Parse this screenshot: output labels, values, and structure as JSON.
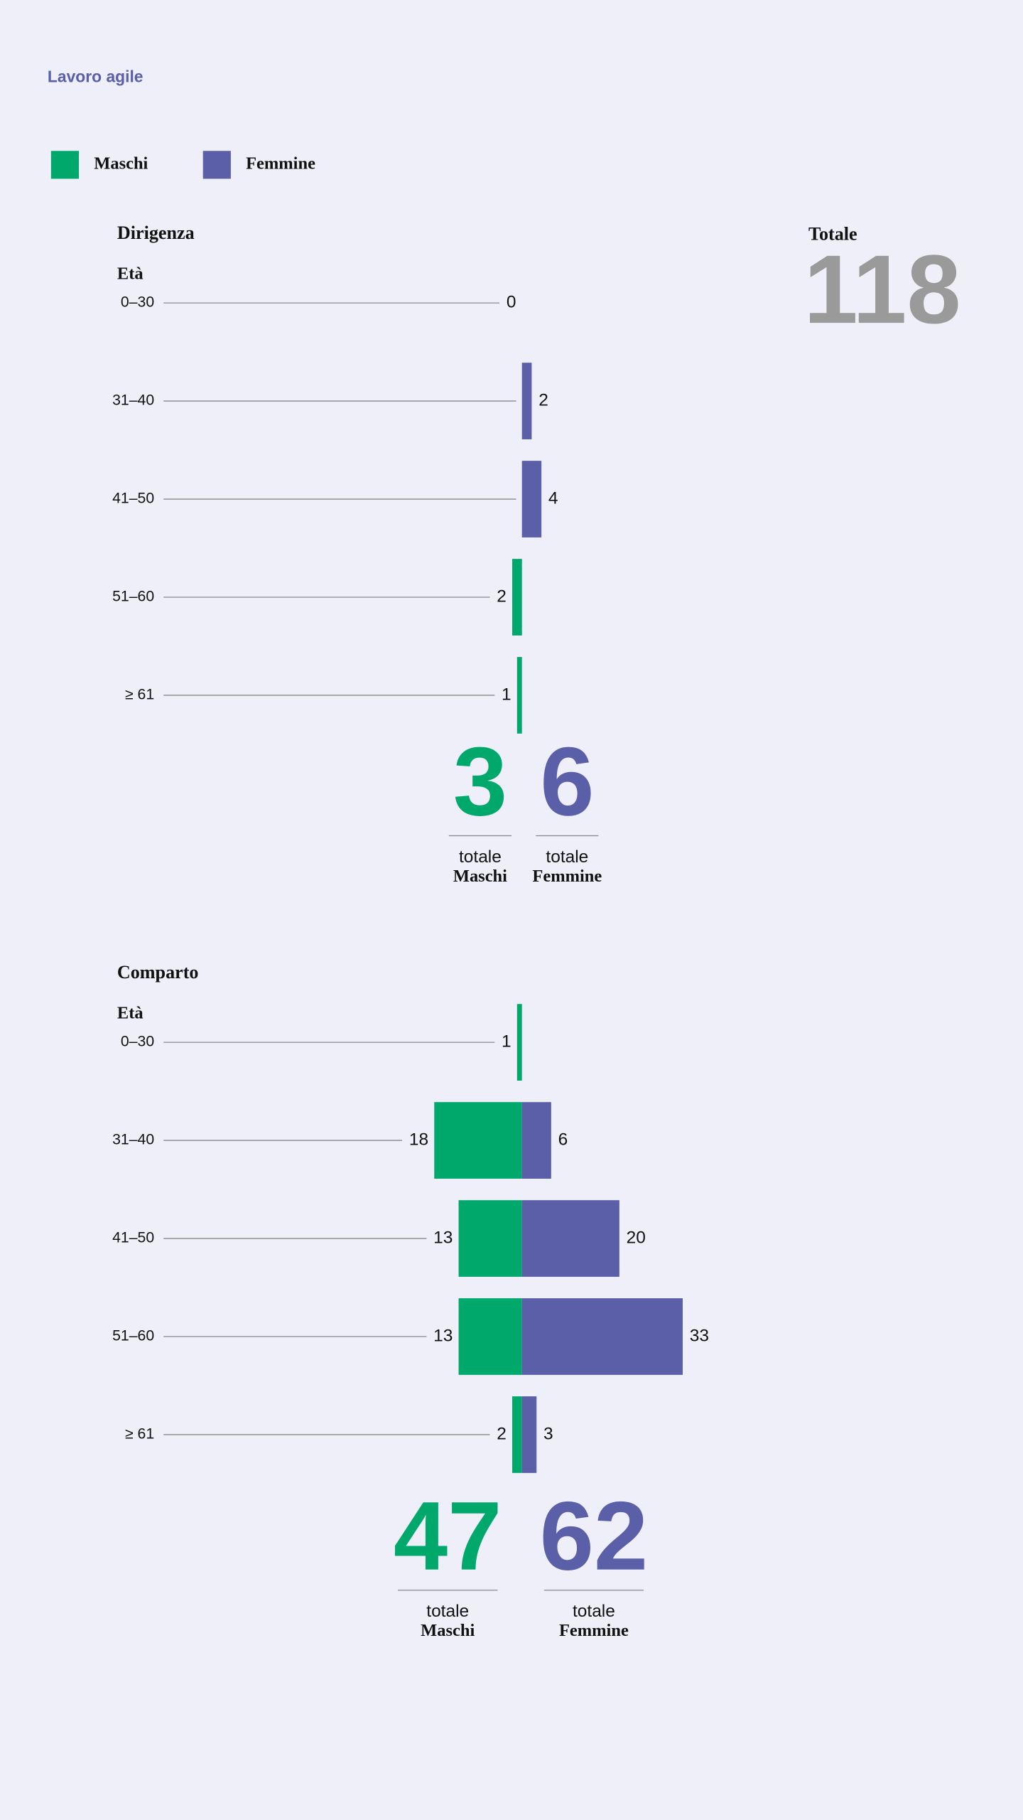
{
  "title": "Lavoro agile",
  "total": {
    "label": "Totale",
    "value": 118
  },
  "chart_data": [
    {
      "type": "bar",
      "orientation": "horizontal-diverging",
      "title": "Dirigenza",
      "category_label": "Età",
      "categories": [
        "0–30",
        "31–40",
        "41–50",
        "51–60",
        "≥ 61"
      ],
      "series": [
        {
          "name": "Maschi",
          "color": "#00a86b",
          "values": [
            0,
            null,
            null,
            2,
            1
          ]
        },
        {
          "name": "Femmine",
          "color": "#5a5fa8",
          "values": [
            null,
            2,
            4,
            null,
            null
          ]
        }
      ],
      "totals": [
        3,
        6
      ],
      "total_caption": "totale"
    },
    {
      "type": "bar",
      "orientation": "horizontal-diverging",
      "title": "Comparto",
      "category_label": "Età",
      "categories": [
        "0–30",
        "31–40",
        "41–50",
        "51–60",
        "≥ 61"
      ],
      "series": [
        {
          "name": "Maschi",
          "color": "#00a86b",
          "values": [
            1,
            18,
            13,
            13,
            2
          ]
        },
        {
          "name": "Femmine",
          "color": "#5a5fa8",
          "values": [
            null,
            6,
            20,
            33,
            3
          ]
        }
      ],
      "totals": [
        47,
        62
      ],
      "total_caption": "totale"
    }
  ]
}
